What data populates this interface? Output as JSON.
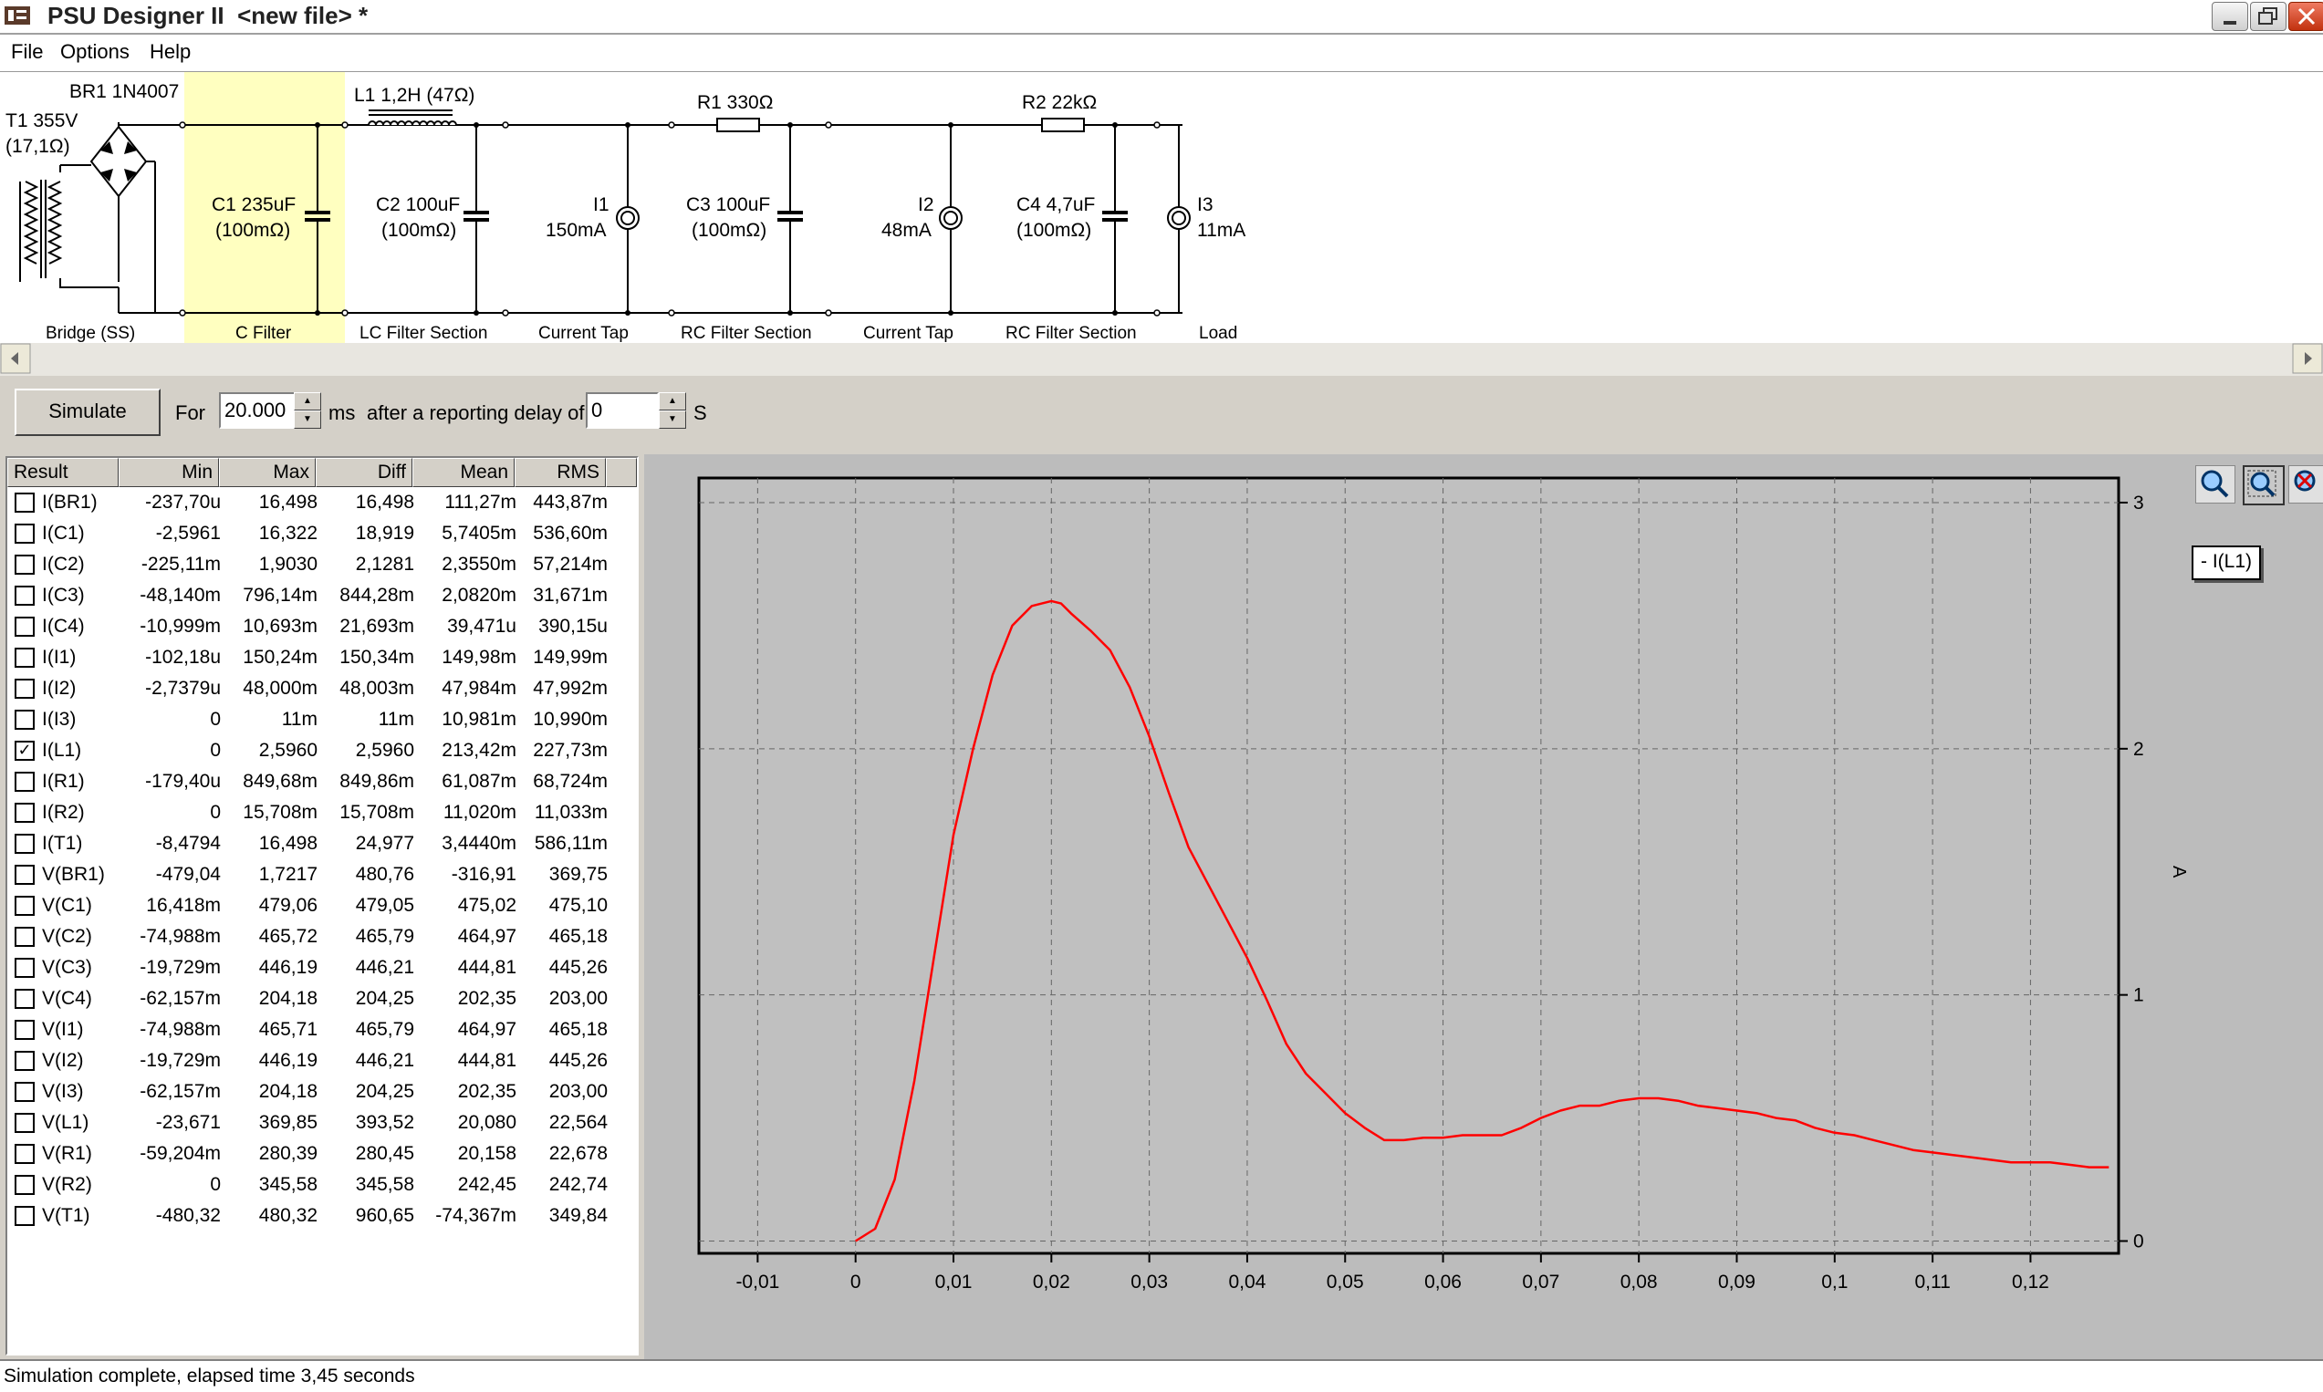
{
  "window": {
    "title": "PSU Designer II  <new file> *"
  },
  "menu": {
    "items": [
      "File",
      "Options",
      "Help"
    ]
  },
  "schematic": {
    "bridge_label": "BR1 1N4007",
    "transformer_label_1": "T1 355V",
    "transformer_label_2": "(17,1Ω)",
    "l1_label": "L1 1,2H (47Ω)",
    "r1_label": "R1 330Ω",
    "r2_label": "R2 22kΩ",
    "c1_label_1": "C1 235uF",
    "c1_label_2": "(100mΩ)",
    "c2_label_1": "C2 100uF",
    "c2_label_2": "(100mΩ)",
    "i1_label_1": "I1",
    "i1_label_2": "150mA",
    "c3_label_1": "C3 100uF",
    "c3_label_2": "(100mΩ)",
    "i2_label_1": "I2",
    "i2_label_2": "48mA",
    "c4_label_1": "C4 4,7uF",
    "c4_label_2": "(100mΩ)",
    "i3_label_1": "I3",
    "i3_label_2": "11mA",
    "sections": [
      "Bridge (SS)",
      "C Filter",
      "LC Filter Section",
      "Current Tap",
      "RC Filter Section",
      "Current Tap",
      "RC Filter Section",
      "Load"
    ],
    "highlight_color": "#ffffc0"
  },
  "simulation": {
    "button_label": "Simulate",
    "for_label": "For",
    "duration_value": "20.000",
    "ms_label": "ms",
    "delay_label": "after a reporting delay of",
    "delay_value": "0",
    "s_label": "S"
  },
  "results": {
    "columns": [
      "Result",
      "Min",
      "Max",
      "Diff",
      "Mean",
      "RMS"
    ],
    "rows": [
      {
        "name": "I(BR1)",
        "checked": false,
        "min": "-237,70u",
        "max": "16,498",
        "diff": "16,498",
        "mean": "111,27m",
        "rms": "443,87m"
      },
      {
        "name": "I(C1)",
        "checked": false,
        "min": "-2,5961",
        "max": "16,322",
        "diff": "18,919",
        "mean": "5,7405m",
        "rms": "536,60m"
      },
      {
        "name": "I(C2)",
        "checked": false,
        "min": "-225,11m",
        "max": "1,9030",
        "diff": "2,1281",
        "mean": "2,3550m",
        "rms": "57,214m"
      },
      {
        "name": "I(C3)",
        "checked": false,
        "min": "-48,140m",
        "max": "796,14m",
        "diff": "844,28m",
        "mean": "2,0820m",
        "rms": "31,671m"
      },
      {
        "name": "I(C4)",
        "checked": false,
        "min": "-10,999m",
        "max": "10,693m",
        "diff": "21,693m",
        "mean": "39,471u",
        "rms": "390,15u"
      },
      {
        "name": "I(I1)",
        "checked": false,
        "min": "-102,18u",
        "max": "150,24m",
        "diff": "150,34m",
        "mean": "149,98m",
        "rms": "149,99m"
      },
      {
        "name": "I(I2)",
        "checked": false,
        "min": "-2,7379u",
        "max": "48,000m",
        "diff": "48,003m",
        "mean": "47,984m",
        "rms": "47,992m"
      },
      {
        "name": "I(I3)",
        "checked": false,
        "min": "0",
        "max": "11m",
        "diff": "11m",
        "mean": "10,981m",
        "rms": "10,990m"
      },
      {
        "name": "I(L1)",
        "checked": true,
        "min": "0",
        "max": "2,5960",
        "diff": "2,5960",
        "mean": "213,42m",
        "rms": "227,73m"
      },
      {
        "name": "I(R1)",
        "checked": false,
        "min": "-179,40u",
        "max": "849,68m",
        "diff": "849,86m",
        "mean": "61,087m",
        "rms": "68,724m"
      },
      {
        "name": "I(R2)",
        "checked": false,
        "min": "0",
        "max": "15,708m",
        "diff": "15,708m",
        "mean": "11,020m",
        "rms": "11,033m"
      },
      {
        "name": "I(T1)",
        "checked": false,
        "min": "-8,4794",
        "max": "16,498",
        "diff": "24,977",
        "mean": "3,4440m",
        "rms": "586,11m"
      },
      {
        "name": "V(BR1)",
        "checked": false,
        "min": "-479,04",
        "max": "1,7217",
        "diff": "480,76",
        "mean": "-316,91",
        "rms": "369,75"
      },
      {
        "name": "V(C1)",
        "checked": false,
        "min": "16,418m",
        "max": "479,06",
        "diff": "479,05",
        "mean": "475,02",
        "rms": "475,10"
      },
      {
        "name": "V(C2)",
        "checked": false,
        "min": "-74,988m",
        "max": "465,72",
        "diff": "465,79",
        "mean": "464,97",
        "rms": "465,18"
      },
      {
        "name": "V(C3)",
        "checked": false,
        "min": "-19,729m",
        "max": "446,19",
        "diff": "446,21",
        "mean": "444,81",
        "rms": "445,26"
      },
      {
        "name": "V(C4)",
        "checked": false,
        "min": "-62,157m",
        "max": "204,18",
        "diff": "204,25",
        "mean": "202,35",
        "rms": "203,00"
      },
      {
        "name": "V(I1)",
        "checked": false,
        "min": "-74,988m",
        "max": "465,71",
        "diff": "465,79",
        "mean": "464,97",
        "rms": "465,18"
      },
      {
        "name": "V(I2)",
        "checked": false,
        "min": "-19,729m",
        "max": "446,19",
        "diff": "446,21",
        "mean": "444,81",
        "rms": "445,26"
      },
      {
        "name": "V(I3)",
        "checked": false,
        "min": "-62,157m",
        "max": "204,18",
        "diff": "204,25",
        "mean": "202,35",
        "rms": "203,00"
      },
      {
        "name": "V(L1)",
        "checked": false,
        "min": "-23,671",
        "max": "369,85",
        "diff": "393,52",
        "mean": "20,080",
        "rms": "22,564"
      },
      {
        "name": "V(R1)",
        "checked": false,
        "min": "-59,204m",
        "max": "280,39",
        "diff": "280,45",
        "mean": "20,158",
        "rms": "22,678"
      },
      {
        "name": "V(R2)",
        "checked": false,
        "min": "0",
        "max": "345,58",
        "diff": "345,58",
        "mean": "242,45",
        "rms": "242,74"
      },
      {
        "name": "V(T1)",
        "checked": false,
        "min": "-480,32",
        "max": "480,32",
        "diff": "960,65",
        "mean": "-74,367m",
        "rms": "349,84"
      }
    ]
  },
  "chart_data": {
    "type": "line",
    "legend": "- I(L1)",
    "ylabel": "A",
    "xlim": [
      -0.016,
      0.129
    ],
    "ylim": [
      -0.05,
      3.1
    ],
    "x_ticks": [
      "-0,01",
      "0",
      "0,01",
      "0,02",
      "0,03",
      "0,04",
      "0,05",
      "0,06",
      "0,07",
      "0,08",
      "0,09",
      "0,1",
      "0,11",
      "0,12"
    ],
    "x_tick_values": [
      -0.01,
      0,
      0.01,
      0.02,
      0.03,
      0.04,
      0.05,
      0.06,
      0.07,
      0.08,
      0.09,
      0.1,
      0.11,
      0.12
    ],
    "y_ticks": [
      "0",
      "1",
      "2",
      "3"
    ],
    "y_tick_values": [
      0,
      1,
      2,
      3
    ],
    "grid": true,
    "series": [
      {
        "name": "I(L1)",
        "color": "#ff0000",
        "x": [
          0.0,
          0.002,
          0.004,
          0.006,
          0.008,
          0.01,
          0.012,
          0.014,
          0.016,
          0.018,
          0.02,
          0.021,
          0.022,
          0.024,
          0.026,
          0.028,
          0.03,
          0.032,
          0.034,
          0.036,
          0.038,
          0.04,
          0.042,
          0.044,
          0.046,
          0.048,
          0.05,
          0.052,
          0.054,
          0.056,
          0.058,
          0.06,
          0.062,
          0.064,
          0.066,
          0.068,
          0.07,
          0.072,
          0.074,
          0.076,
          0.078,
          0.08,
          0.082,
          0.084,
          0.086,
          0.088,
          0.09,
          0.092,
          0.094,
          0.096,
          0.098,
          0.1,
          0.102,
          0.104,
          0.106,
          0.108,
          0.11,
          0.112,
          0.114,
          0.116,
          0.118,
          0.12,
          0.122,
          0.124,
          0.126,
          0.128
        ],
        "values": [
          0.0,
          0.05,
          0.25,
          0.65,
          1.15,
          1.65,
          2.0,
          2.3,
          2.5,
          2.58,
          2.6,
          2.59,
          2.55,
          2.48,
          2.4,
          2.25,
          2.05,
          1.82,
          1.6,
          1.45,
          1.3,
          1.15,
          0.98,
          0.8,
          0.68,
          0.6,
          0.52,
          0.46,
          0.41,
          0.41,
          0.42,
          0.42,
          0.43,
          0.43,
          0.43,
          0.46,
          0.5,
          0.53,
          0.55,
          0.55,
          0.57,
          0.58,
          0.58,
          0.57,
          0.55,
          0.54,
          0.53,
          0.52,
          0.5,
          0.49,
          0.46,
          0.44,
          0.43,
          0.41,
          0.39,
          0.37,
          0.36,
          0.35,
          0.34,
          0.33,
          0.32,
          0.32,
          0.32,
          0.31,
          0.3,
          0.3
        ]
      }
    ]
  },
  "status": {
    "text": "Simulation complete, elapsed time 3,45 seconds"
  },
  "zoom_tools": [
    "zoom-in-icon",
    "zoom-window-icon",
    "zoom-reset-icon"
  ]
}
